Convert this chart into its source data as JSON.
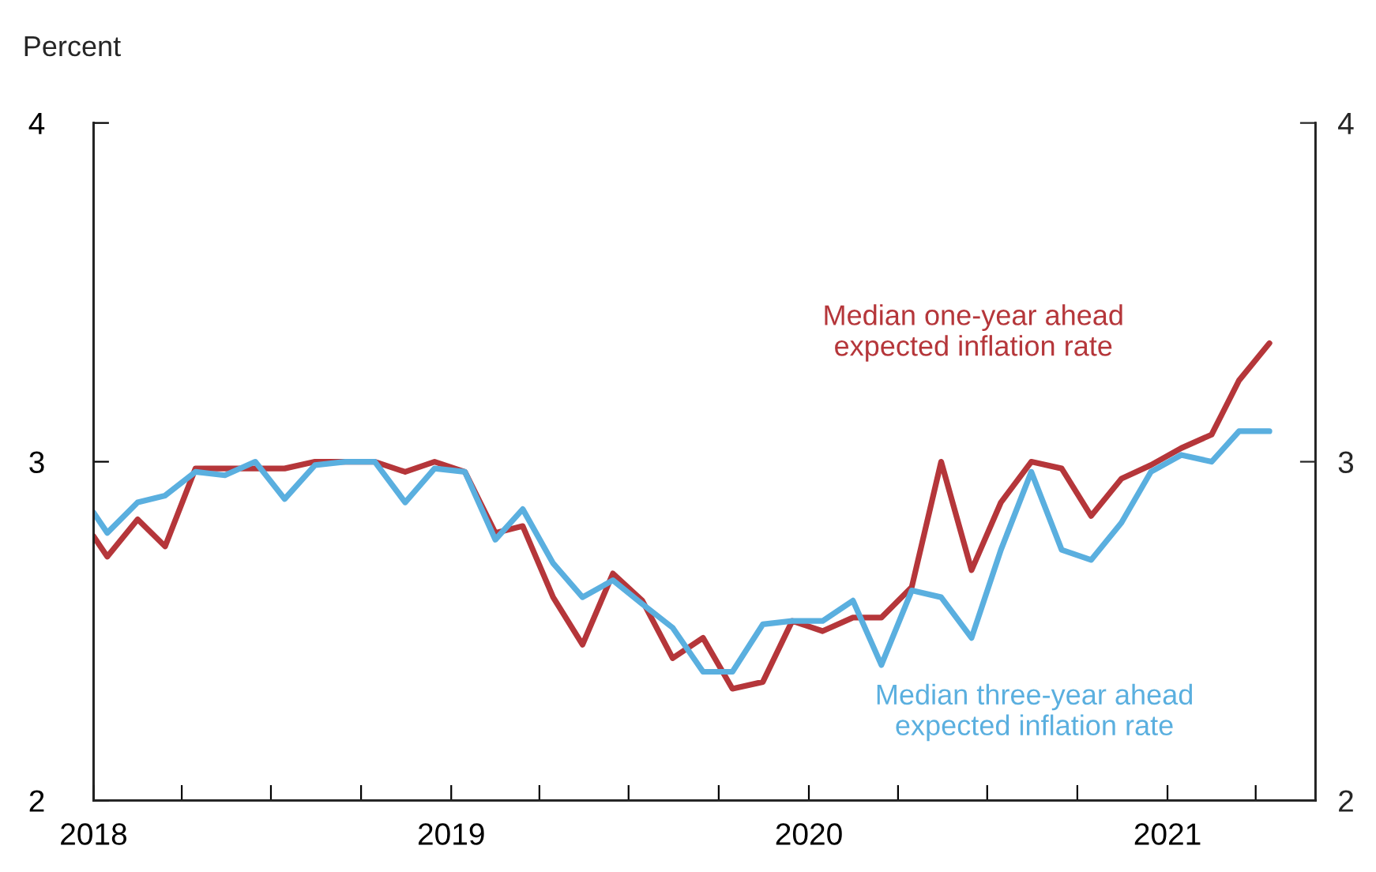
{
  "chart_data": {
    "type": "line",
    "ylabel": "Percent",
    "x": [
      "2018-01-01",
      "2018-01-15",
      "2018-02-15",
      "2018-03-15",
      "2018-04-15",
      "2018-05-15",
      "2018-06-15",
      "2018-07-15",
      "2018-08-15",
      "2018-09-15",
      "2018-10-15",
      "2018-11-15",
      "2018-12-15",
      "2019-01-15",
      "2019-02-15",
      "2019-03-15",
      "2019-04-15",
      "2019-05-15",
      "2019-06-15",
      "2019-07-15",
      "2019-08-15",
      "2019-09-15",
      "2019-10-15",
      "2019-11-15",
      "2019-12-15",
      "2020-01-15",
      "2020-02-15",
      "2020-03-15",
      "2020-04-15",
      "2020-05-15",
      "2020-06-15",
      "2020-07-15",
      "2020-08-15",
      "2020-09-15",
      "2020-10-15",
      "2020-11-15",
      "2020-12-15",
      "2021-01-15",
      "2021-02-15",
      "2021-03-15",
      "2021-04-15"
    ],
    "series": [
      {
        "name": "Median one-year ahead expected inflation rate",
        "color": "#b5363a",
        "values": [
          2.78,
          2.72,
          2.83,
          2.75,
          2.98,
          2.98,
          2.98,
          2.98,
          3.0,
          3.0,
          3.0,
          2.97,
          3.0,
          2.97,
          2.79,
          2.81,
          2.6,
          2.46,
          2.67,
          2.59,
          2.42,
          2.48,
          2.33,
          2.35,
          2.53,
          2.5,
          2.54,
          2.54,
          2.63,
          3.0,
          2.68,
          2.88,
          3.0,
          2.98,
          2.84,
          2.95,
          2.99,
          3.04,
          3.08,
          3.24,
          3.35
        ]
      },
      {
        "name": "Median three-year ahead expected inflation rate",
        "color": "#5aafdf",
        "values": [
          2.85,
          2.79,
          2.88,
          2.9,
          2.97,
          2.96,
          3.0,
          2.89,
          2.99,
          3.0,
          3.0,
          2.88,
          2.98,
          2.97,
          2.77,
          2.86,
          2.7,
          2.6,
          2.65,
          2.58,
          2.51,
          2.38,
          2.38,
          2.52,
          2.53,
          2.53,
          2.59,
          2.4,
          2.62,
          2.6,
          2.48,
          2.74,
          2.97,
          2.74,
          2.71,
          2.82,
          2.97,
          3.02,
          3.0,
          3.09,
          3.09
        ]
      }
    ],
    "xlim": [
      "2018-01-01",
      "2021-06-01"
    ],
    "xticks": [
      {
        "value": "2018-01-01",
        "label": "2018"
      },
      {
        "value": "2018-04-01",
        "label": null
      },
      {
        "value": "2018-07-01",
        "label": null
      },
      {
        "value": "2018-10-01",
        "label": null
      },
      {
        "value": "2019-01-01",
        "label": "2019"
      },
      {
        "value": "2019-04-01",
        "label": null
      },
      {
        "value": "2019-07-01",
        "label": null
      },
      {
        "value": "2019-10-01",
        "label": null
      },
      {
        "value": "2020-01-01",
        "label": "2020"
      },
      {
        "value": "2020-04-01",
        "label": null
      },
      {
        "value": "2020-07-01",
        "label": null
      },
      {
        "value": "2020-10-01",
        "label": null
      },
      {
        "value": "2021-01-01",
        "label": "2021"
      },
      {
        "value": "2021-04-01",
        "label": null
      }
    ],
    "ylim": [
      2,
      4
    ],
    "yticks": [
      2,
      3,
      4
    ],
    "y2lim": [
      2,
      4
    ],
    "y2ticks": [
      2,
      3,
      4
    ],
    "grid": false,
    "legend": false,
    "marker": "none",
    "line_style": "solid"
  }
}
